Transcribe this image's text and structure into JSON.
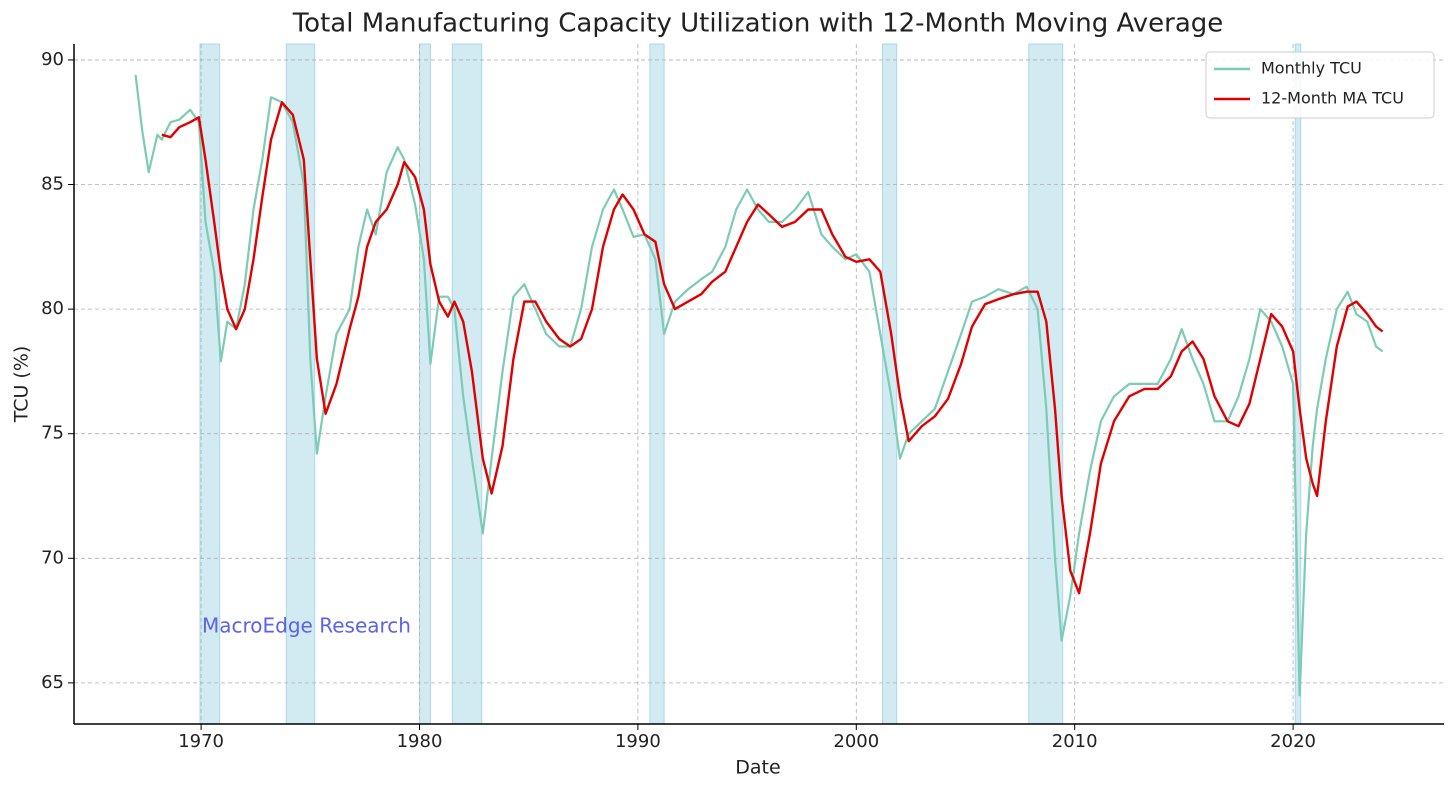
{
  "chart_data": {
    "type": "line",
    "title": "Total Manufacturing Capacity Utilization with 12-Month Moving Average",
    "x_label": "Date",
    "y_label": "TCU (%)",
    "annotation": "MacroEdge Research",
    "xlim": [
      1964.18,
      2026.91
    ],
    "xticks": [
      1970,
      1980,
      1990,
      2000,
      2010,
      2020
    ],
    "ylim": [
      63.35,
      90.64
    ],
    "yticks": [
      65,
      70,
      75,
      80,
      85,
      90
    ],
    "grid": true,
    "legend": "upper right",
    "recessions": [
      [
        1969.95,
        1970.85
      ],
      [
        1973.9,
        1975.2
      ],
      [
        1980.0,
        1980.5
      ],
      [
        1981.5,
        1982.85
      ],
      [
        1990.55,
        1991.2
      ],
      [
        2001.2,
        2001.85
      ],
      [
        2007.9,
        2009.45
      ],
      [
        2020.1,
        2020.35
      ]
    ],
    "recession_color": "#add8e6",
    "x": [
      1967.0,
      1967.3,
      1967.6,
      1968.0,
      1968.2,
      1968.6,
      1969.0,
      1969.5,
      1969.9,
      1970.2,
      1970.6,
      1970.9,
      1971.2,
      1971.6,
      1972.0,
      1972.4,
      1972.8,
      1973.2,
      1973.7,
      1974.2,
      1974.7,
      1975.0,
      1975.3,
      1975.7,
      1976.2,
      1976.8,
      1977.2,
      1977.6,
      1978.0,
      1978.5,
      1979.0,
      1979.3,
      1979.8,
      1980.2,
      1980.5,
      1980.9,
      1981.3,
      1981.6,
      1982.0,
      1982.4,
      1982.9,
      1983.3,
      1983.8,
      1984.3,
      1984.8,
      1985.3,
      1985.8,
      1986.4,
      1986.9,
      1987.4,
      1987.9,
      1988.4,
      1988.9,
      1989.3,
      1989.8,
      1990.3,
      1990.8,
      1991.2,
      1991.7,
      1992.3,
      1992.9,
      1993.4,
      1994.0,
      1994.5,
      1995.0,
      1995.5,
      1996.0,
      1996.6,
      1997.2,
      1997.8,
      1998.4,
      1998.9,
      1999.5,
      2000.0,
      2000.6,
      2001.1,
      2001.6,
      2002.0,
      2002.4,
      2003.0,
      2003.6,
      2004.2,
      2004.8,
      2005.3,
      2005.9,
      2006.5,
      2007.2,
      2007.8,
      2008.3,
      2008.7,
      2009.1,
      2009.4,
      2009.8,
      2010.2,
      2010.7,
      2011.2,
      2011.8,
      2012.5,
      2013.2,
      2013.8,
      2014.4,
      2014.9,
      2015.4,
      2015.9,
      2016.4,
      2017.0,
      2017.5,
      2018.0,
      2018.5,
      2019.0,
      2019.5,
      2020.0,
      2020.3,
      2020.6,
      2020.9,
      2021.1,
      2021.5,
      2022.0,
      2022.5,
      2022.9,
      2023.4,
      2023.8,
      2024.1
    ],
    "series": [
      {
        "name": "Monthly TCU",
        "color": "#7ccbb5",
        "values": [
          89.4,
          87.2,
          85.5,
          87.0,
          86.8,
          87.5,
          87.6,
          88.0,
          87.5,
          83.5,
          81.5,
          77.9,
          79.5,
          79.2,
          81.0,
          84.0,
          86.0,
          88.5,
          88.3,
          87.5,
          85.0,
          78.0,
          74.2,
          76.5,
          79.0,
          80.0,
          82.5,
          84.0,
          83.0,
          85.5,
          86.5,
          86.0,
          84.2,
          82.0,
          77.8,
          80.5,
          80.5,
          80.0,
          76.5,
          74.0,
          71.0,
          74.0,
          77.5,
          80.5,
          81.0,
          80.0,
          79.0,
          78.5,
          78.5,
          80.0,
          82.5,
          84.0,
          84.8,
          84.0,
          82.9,
          83.0,
          82.0,
          79.0,
          80.3,
          80.8,
          81.2,
          81.5,
          82.5,
          84.0,
          84.8,
          84.0,
          83.5,
          83.5,
          84.0,
          84.7,
          83.0,
          82.5,
          82.0,
          82.2,
          81.5,
          79.0,
          76.5,
          74.0,
          75.0,
          75.5,
          76.0,
          77.5,
          79.0,
          80.3,
          80.5,
          80.8,
          80.6,
          80.9,
          80.0,
          76.0,
          70.0,
          66.7,
          68.5,
          71.0,
          73.5,
          75.5,
          76.5,
          77.0,
          77.0,
          77.0,
          78.0,
          79.2,
          78.0,
          77.0,
          75.5,
          75.5,
          76.5,
          78.0,
          80.0,
          79.5,
          78.5,
          77.0,
          64.5,
          71.0,
          74.5,
          76.0,
          78.0,
          80.0,
          80.7,
          79.8,
          79.5,
          78.5,
          78.3
        ]
      },
      {
        "name": "12-Month MA TCU",
        "color": "#e00000",
        "values": [
          null,
          null,
          null,
          null,
          87.0,
          86.9,
          87.3,
          87.5,
          87.7,
          86.0,
          83.5,
          81.5,
          80.0,
          79.2,
          80.0,
          82.0,
          84.5,
          86.8,
          88.3,
          87.8,
          86.0,
          82.0,
          78.0,
          75.8,
          77.0,
          79.2,
          80.5,
          82.5,
          83.5,
          84.0,
          85.0,
          85.9,
          85.3,
          84.0,
          81.8,
          80.3,
          79.7,
          80.3,
          79.5,
          77.5,
          74.0,
          72.6,
          74.5,
          78.0,
          80.3,
          80.3,
          79.5,
          78.8,
          78.5,
          78.8,
          80.0,
          82.5,
          84.0,
          84.6,
          84.0,
          83.0,
          82.7,
          81.0,
          80.0,
          80.3,
          80.6,
          81.1,
          81.5,
          82.5,
          83.5,
          84.2,
          83.8,
          83.3,
          83.5,
          84.0,
          84.0,
          83.0,
          82.1,
          81.9,
          82.0,
          81.5,
          79.0,
          76.5,
          74.7,
          75.3,
          75.7,
          76.4,
          77.8,
          79.3,
          80.2,
          80.4,
          80.6,
          80.7,
          80.7,
          79.5,
          76.0,
          72.5,
          69.5,
          68.6,
          71.0,
          73.8,
          75.5,
          76.5,
          76.8,
          76.8,
          77.3,
          78.3,
          78.7,
          78.0,
          76.5,
          75.5,
          75.3,
          76.2,
          78.0,
          79.8,
          79.3,
          78.3,
          76.0,
          74.0,
          73.0,
          72.5,
          75.5,
          78.5,
          80.1,
          80.3,
          79.8,
          79.3,
          79.1
        ]
      }
    ]
  }
}
